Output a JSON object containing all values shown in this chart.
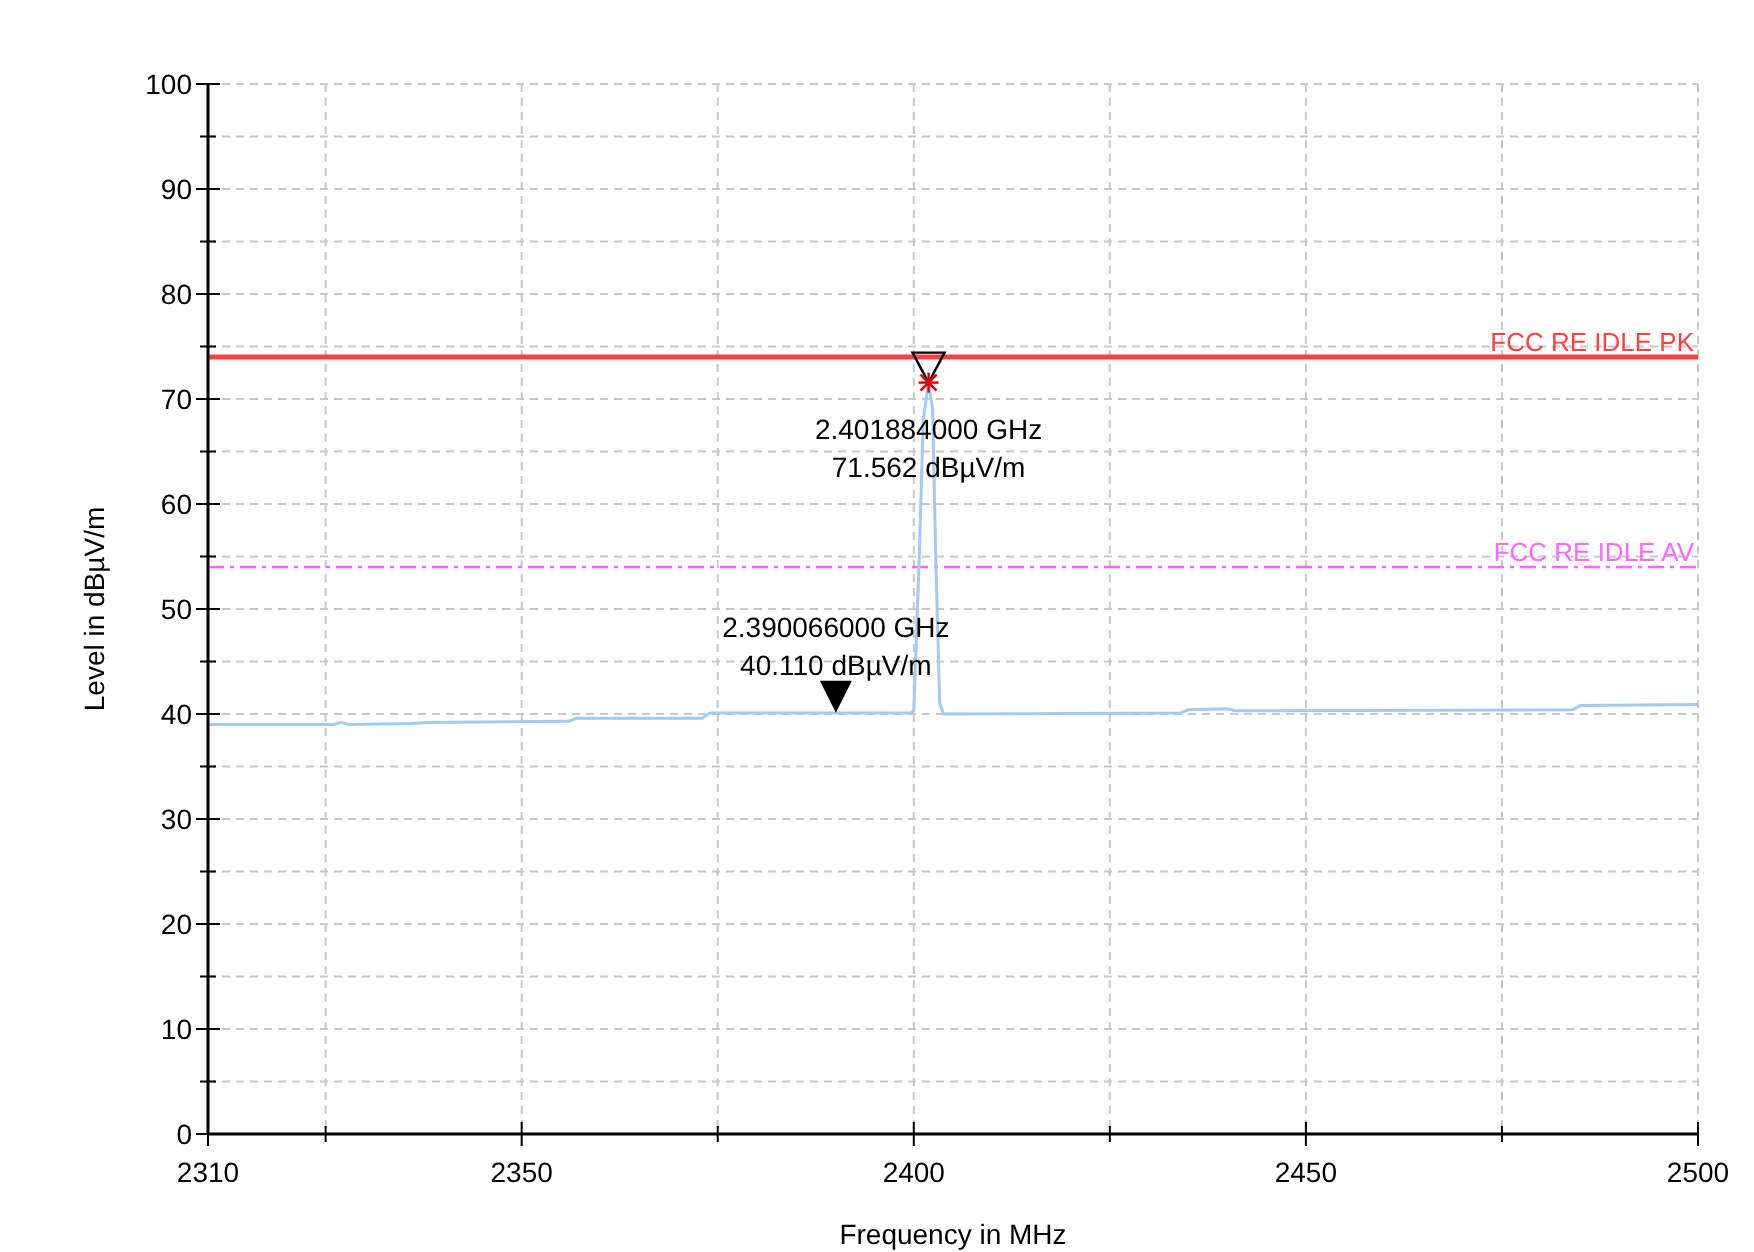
{
  "chart_data": {
    "type": "line",
    "xlabel": "Frequency in MHz",
    "ylabel": "Level in dBµV/m",
    "xlim": [
      2310,
      2500
    ],
    "xticks": [
      2310,
      {
        "value": 2325,
        "label": null
      },
      2350,
      {
        "value": 2375,
        "label": null
      },
      2400,
      {
        "value": 2425,
        "label": null
      },
      2450,
      {
        "value": 2475,
        "label": null
      },
      2500
    ],
    "ylim": [
      0,
      100
    ],
    "yticks": [
      0,
      {
        "value": 5,
        "label": null
      },
      10,
      {
        "value": 15,
        "label": null
      },
      20,
      {
        "value": 25,
        "label": null
      },
      30,
      {
        "value": 35,
        "label": null
      },
      40,
      {
        "value": 45,
        "label": null
      },
      50,
      {
        "value": 55,
        "label": null
      },
      60,
      {
        "value": 65,
        "label": null
      },
      70,
      {
        "value": 75,
        "label": null
      },
      80,
      {
        "value": 85,
        "label": null
      },
      90,
      {
        "value": 95,
        "label": null
      },
      100
    ],
    "grid": true,
    "marker": "none",
    "line_style": "solid",
    "series": [
      {
        "color": "#9fcbf5",
        "x": [
          2310,
          2326,
          2327,
          2328,
          2336,
          2338,
          2356,
          2357,
          2373,
          2374,
          2399.5,
          2400,
          2400.7,
          2401.2,
          2401.884,
          2402.4,
          2402.8,
          2403.3,
          2403.8,
          2434,
          2435,
          2440,
          2441,
          2484,
          2485,
          2500
        ],
        "values": [
          39.0,
          39.0,
          39.2,
          39.0,
          39.1,
          39.2,
          39.3,
          39.6,
          39.6,
          40.1,
          40.1,
          40.3,
          55,
          68,
          71.562,
          69,
          55,
          41,
          40.0,
          40.1,
          40.4,
          40.5,
          40.3,
          40.4,
          40.8,
          40.9
        ]
      }
    ],
    "ref_lines": [
      {
        "axis": "y",
        "value": 74,
        "label": "FCC RE IDLE PK",
        "color": "#ff4040",
        "line_style": "solid"
      },
      {
        "axis": "y",
        "value": 54,
        "label": "FCC RE IDLE AV",
        "color": "#ff66ff",
        "line_style": "dashed"
      }
    ],
    "annotations": [
      {
        "text": "2.401884000 GHz\n71.562 dBµV/m",
        "x": 2401.884,
        "y": 71.562
      },
      {
        "text": "2.390066000 GHz\n40.110 dBµV/m",
        "x": 2390.066,
        "y": 40.11
      }
    ]
  }
}
